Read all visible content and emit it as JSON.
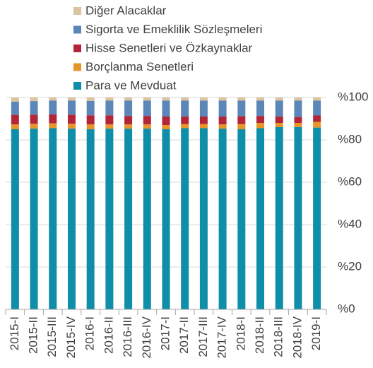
{
  "chart_data": {
    "type": "stacked_bar",
    "categories": [
      "2015-I",
      "2015-II",
      "2015-III",
      "2015-IV",
      "2016-I",
      "2016-II",
      "2016-III",
      "2016-IV",
      "2017-I",
      "2017-II",
      "2017-III",
      "2017-IV",
      "2018-I",
      "2018-II",
      "2018-III",
      "2018-IV",
      "2019-I"
    ],
    "series": [
      {
        "name": "Para ve Mevduat",
        "color": "#0e8ea8",
        "values": [
          85,
          85.3,
          85.5,
          85.3,
          85,
          85.3,
          85.3,
          85.3,
          85,
          85.5,
          85.5,
          85.3,
          85,
          85.5,
          86,
          86,
          85.8
        ]
      },
      {
        "name": "Borçlanma Senetleri",
        "color": "#e6952a",
        "values": [
          2.3,
          2.3,
          2.3,
          2.3,
          2.3,
          2,
          2,
          2,
          2,
          2,
          2,
          2,
          2.5,
          2.5,
          2,
          2,
          2.7
        ]
      },
      {
        "name": "Hisse Senetleri ve Özkaynaklar",
        "color": "#b3263a",
        "values": [
          4.5,
          4.3,
          4.3,
          4.3,
          4.3,
          4.3,
          4,
          4,
          4,
          3.5,
          3.5,
          3.7,
          3.7,
          3.3,
          3,
          2.8,
          3
        ]
      },
      {
        "name": "Sigorta ve Emeklilik Sözleşmeleri",
        "color": "#5b87b8",
        "values": [
          6.2,
          6.4,
          6.4,
          6.6,
          6.8,
          6.9,
          7.2,
          7.2,
          7.5,
          7.5,
          7.5,
          7.5,
          7.3,
          7.2,
          7.5,
          7.7,
          7
        ]
      },
      {
        "name": "Diğer Alacaklar",
        "color": "#d9c3a0",
        "values": [
          2,
          1.7,
          1.5,
          1.5,
          1.6,
          1.5,
          1.5,
          1.5,
          1.5,
          1.5,
          1.5,
          1.5,
          1.5,
          1.5,
          1.5,
          1.5,
          1.5
        ]
      }
    ],
    "ylim": [
      0,
      100
    ],
    "yticks": [
      {
        "value": 0,
        "label": "%0"
      },
      {
        "value": 20,
        "label": "%20"
      },
      {
        "value": 40,
        "label": "%40"
      },
      {
        "value": 60,
        "label": "%60"
      },
      {
        "value": 80,
        "label": "%80"
      },
      {
        "value": 100,
        "label": "%100"
      }
    ],
    "grid": true
  }
}
